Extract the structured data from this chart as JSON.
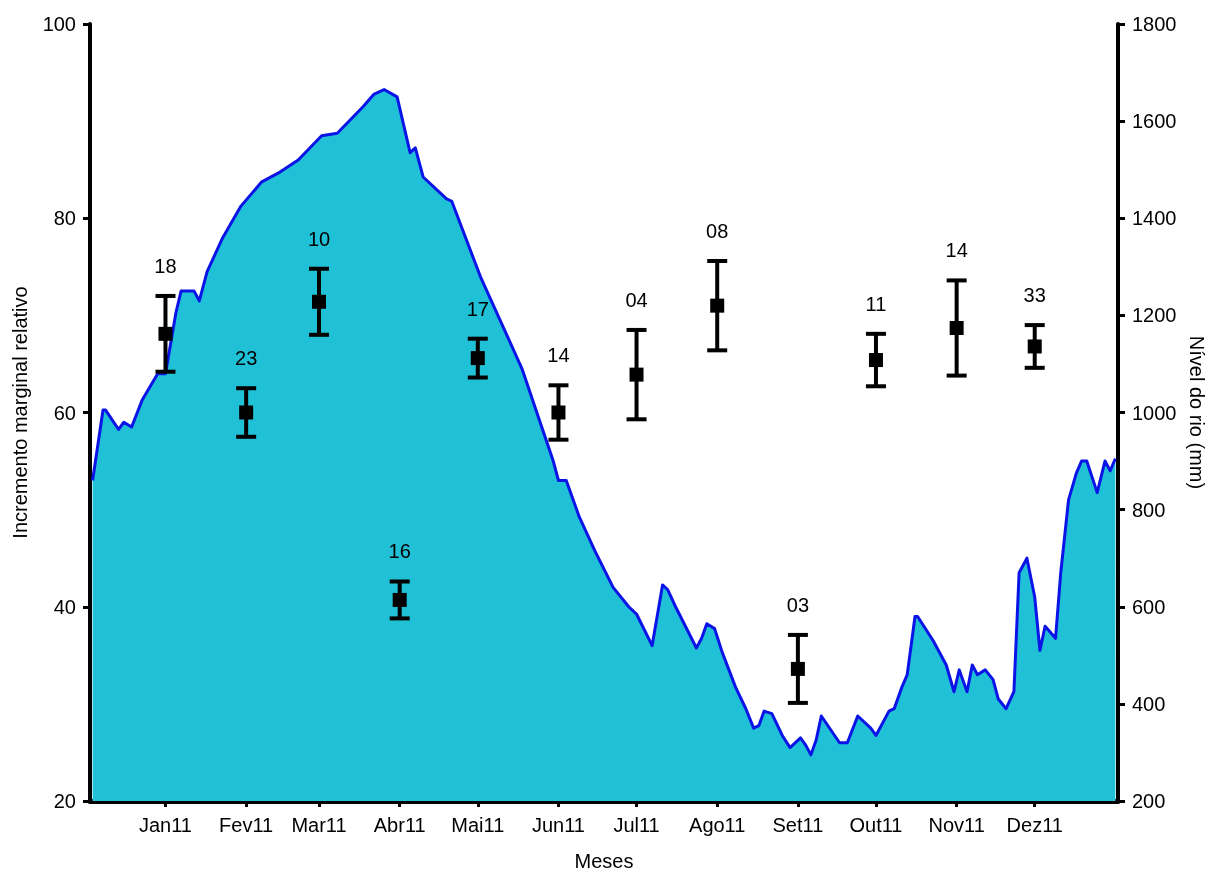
{
  "chart_data": {
    "type": "scatter",
    "xlabel": "Meses",
    "ylabel": "Incremento marginal relativo",
    "y2label": "Nível do rio (mm)",
    "xlim": [
      "2010-12-17",
      "2012-01-16"
    ],
    "xticks": [
      {
        "value": "2011-01-15",
        "label": "Jan11"
      },
      {
        "value": "2011-02-15",
        "label": "Fev11"
      },
      {
        "value": "2011-03-15",
        "label": "Mar11"
      },
      {
        "value": "2011-04-15",
        "label": "Abr11"
      },
      {
        "value": "2011-05-15",
        "label": "Mai11"
      },
      {
        "value": "2011-06-15",
        "label": "Jun11"
      },
      {
        "value": "2011-07-15",
        "label": "Jul11"
      },
      {
        "value": "2011-08-15",
        "label": "Ago11"
      },
      {
        "value": "2011-09-15",
        "label": "Set11"
      },
      {
        "value": "2011-10-15",
        "label": "Out11"
      },
      {
        "value": "2011-11-15",
        "label": "Nov11"
      },
      {
        "value": "2011-12-15",
        "label": "Dez11"
      }
    ],
    "ylim": [
      20,
      100
    ],
    "yticks": [
      20,
      40,
      60,
      80,
      100
    ],
    "y2lim": [
      200,
      1800
    ],
    "y2ticks": [
      200,
      400,
      600,
      800,
      1000,
      1200,
      1400,
      1600,
      1800
    ],
    "grid": false,
    "series": [
      {
        "type": "area",
        "axis": "y2",
        "color": "#20c1d6",
        "marker": "none",
        "x": [
          "2010-12-18",
          "2010-12-22",
          "2010-12-23",
          "2010-12-28",
          "2010-12-30",
          "2011-01-02",
          "2011-01-06",
          "2011-01-12",
          "2011-01-15",
          "2011-01-19",
          "2011-01-21",
          "2011-01-26",
          "2011-01-28",
          "2011-01-31",
          "2011-02-06",
          "2011-02-13",
          "2011-02-21",
          "2011-02-28",
          "2011-03-07",
          "2011-03-16",
          "2011-03-22",
          "2011-04-01",
          "2011-04-05",
          "2011-04-09",
          "2011-04-14",
          "2011-04-19",
          "2011-04-21",
          "2011-04-24",
          "2011-05-03",
          "2011-05-05",
          "2011-05-16",
          "2011-06-01",
          "2011-06-13",
          "2011-06-15",
          "2011-06-18",
          "2011-06-23",
          "2011-06-29",
          "2011-07-06",
          "2011-07-12",
          "2011-07-15",
          "2011-07-21",
          "2011-07-25",
          "2011-07-27",
          "2011-07-30",
          "2011-08-07",
          "2011-08-09",
          "2011-08-11",
          "2011-08-14",
          "2011-08-17",
          "2011-08-22",
          "2011-08-26",
          "2011-08-29",
          "2011-08-31",
          "2011-09-02",
          "2011-09-05",
          "2011-09-09",
          "2011-09-12",
          "2011-09-16",
          "2011-09-18",
          "2011-09-20",
          "2011-09-22",
          "2011-09-24",
          "2011-10-01",
          "2011-10-04",
          "2011-10-08",
          "2011-10-13",
          "2011-10-15",
          "2011-10-20",
          "2011-10-22",
          "2011-10-25",
          "2011-10-27",
          "2011-10-30",
          "2011-10-31",
          "2011-11-06",
          "2011-11-11",
          "2011-11-14",
          "2011-11-16",
          "2011-11-19",
          "2011-11-21",
          "2011-11-23",
          "2011-11-26",
          "2011-11-29",
          "2011-12-01",
          "2011-12-04",
          "2011-12-07",
          "2011-12-09",
          "2011-12-12",
          "2011-12-15",
          "2011-12-17",
          "2011-12-19",
          "2011-12-23",
          "2011-12-25",
          "2011-12-28",
          "2011-12-31",
          "2012-01-02",
          "2012-01-04",
          "2012-01-08",
          "2012-01-11",
          "2012-01-13",
          "2012-01-15"
        ],
        "values": [
          860,
          1005,
          1005,
          965,
          980,
          970,
          1025,
          1080,
          1080,
          1205,
          1250,
          1250,
          1230,
          1290,
          1360,
          1425,
          1475,
          1495,
          1520,
          1570,
          1575,
          1630,
          1655,
          1665,
          1650,
          1535,
          1545,
          1485,
          1440,
          1435,
          1280,
          1090,
          900,
          860,
          860,
          785,
          715,
          640,
          600,
          585,
          520,
          645,
          635,
          600,
          515,
          535,
          565,
          555,
          505,
          435,
          390,
          350,
          355,
          385,
          380,
          335,
          310,
          330,
          315,
          295,
          325,
          375,
          320,
          320,
          375,
          350,
          335,
          385,
          390,
          435,
          460,
          580,
          580,
          530,
          480,
          425,
          470,
          425,
          480,
          460,
          470,
          450,
          410,
          390,
          425,
          670,
          700,
          620,
          510,
          560,
          535,
          670,
          820,
          875,
          900,
          900,
          835,
          900,
          880,
          905
        ]
      },
      {
        "color": "#000000",
        "marker": "square",
        "x": [
          "2011-01-15",
          "2011-02-15",
          "2011-03-15",
          "2011-04-15",
          "2011-05-15",
          "2011-06-15",
          "2011-07-15",
          "2011-08-15",
          "2011-09-15",
          "2011-10-15",
          "2011-11-15",
          "2011-12-15"
        ],
        "values": [
          68.1,
          60.0,
          71.4,
          40.7,
          65.6,
          60.0,
          63.9,
          71.0,
          33.6,
          65.4,
          68.7,
          66.8
        ],
        "errors": [
          3.9,
          2.5,
          3.4,
          1.9,
          2.0,
          2.8,
          4.6,
          4.6,
          3.5,
          2.7,
          4.9,
          2.2
        ]
      }
    ],
    "annotations": [
      "18",
      "23",
      "10",
      "16",
      "17",
      "14",
      "04",
      "08",
      "03",
      "11",
      "14",
      "33"
    ]
  }
}
